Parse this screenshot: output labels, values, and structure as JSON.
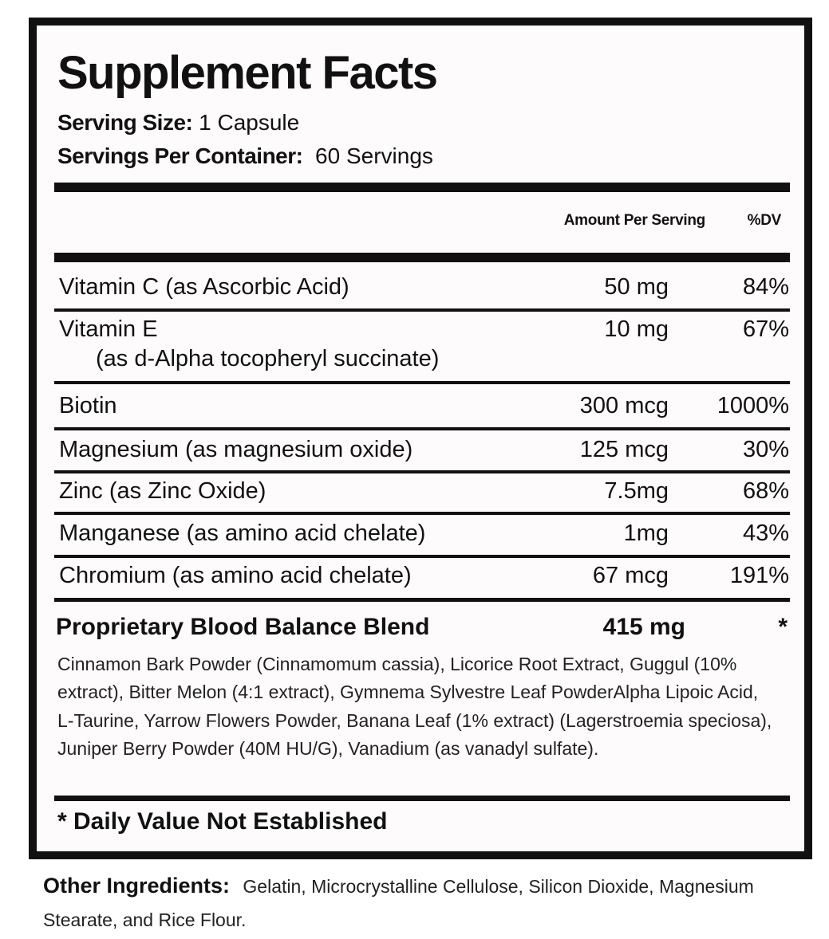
{
  "title": "Supplement Facts",
  "serving_size": {
    "label": "Serving Size:",
    "value": "1 Capsule"
  },
  "servings_per_container": {
    "label": "Servings Per Container:",
    "value": "60 Servings"
  },
  "columns": {
    "amount": "Amount Per Serving",
    "dv": "%DV"
  },
  "rows": [
    {
      "name": "Vitamin C (as Ascorbic Acid)",
      "amount": "50 mg",
      "dv": "84%"
    },
    {
      "name": "Vitamin E",
      "sub": "(as d-Alpha tocopheryl succinate)",
      "amount": "10 mg",
      "dv": "67%"
    },
    {
      "name": "Biotin",
      "amount": "300 mcg",
      "dv": "1000%"
    },
    {
      "name": "Magnesium (as magnesium oxide)",
      "amount": "125 mcg",
      "dv": "30%"
    },
    {
      "name": "Zinc (as Zinc Oxide)",
      "amount": "7.5mg",
      "dv": "68%"
    },
    {
      "name": "Manganese (as amino acid chelate)",
      "amount": "1mg",
      "dv": "43%"
    },
    {
      "name": "Chromium (as amino acid chelate)",
      "amount": "67 mcg",
      "dv": "191%"
    }
  ],
  "blend": {
    "name": "Proprietary Blood Balance Blend",
    "amount": "415 mg",
    "dv": "*",
    "ingredients": "Cinnamon Bark Powder (Cinnamomum cassia), Licorice Root Extract, Guggul (10% extract), Bitter Melon (4:1 extract), Gymnema Sylvestre Leaf PowderAlpha Lipoic Acid, L-Taurine, Yarrow Flowers Powder, Banana Leaf (1% extract) (Lagerstroemia speciosa), Juniper Berry Powder (40M HU/G), Vanadium (as vanadyl sulfate)."
  },
  "footnote": "* Daily Value Not Established",
  "other_ingredients": {
    "label": "Other Ingredients:",
    "value": "Gelatin, Microcrystalline Cellulose, Silicon Dioxide, Magnesium Stearate, and Rice Flour."
  }
}
